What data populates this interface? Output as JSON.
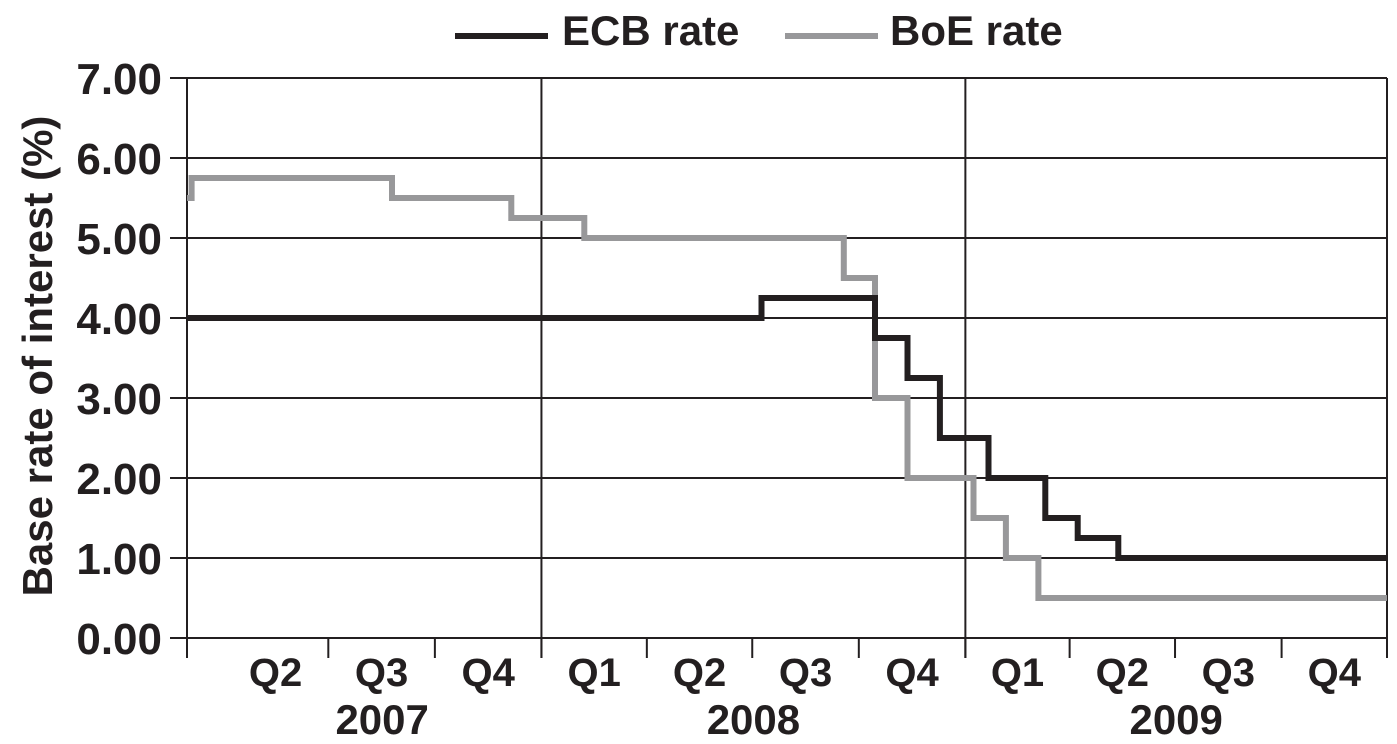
{
  "chart_data": {
    "type": "line",
    "line_shape": "step",
    "ylabel": "Base rate of interest (%)",
    "ylim": [
      0,
      7
    ],
    "yticks": [
      "0.00",
      "1.00",
      "2.00",
      "3.00",
      "4.00",
      "5.00",
      "6.00",
      "7.00"
    ],
    "grid": "horizontal lines at each y tick; vertical lines at year boundaries",
    "xlim": [
      "2007-03-01",
      "2009-12-31"
    ],
    "quarter_ticks": [
      {
        "label": "Q2",
        "start": "2007-04-01",
        "end": "2007-07-01"
      },
      {
        "label": "Q3",
        "start": "2007-07-01",
        "end": "2007-10-01"
      },
      {
        "label": "Q4",
        "start": "2007-10-01",
        "end": "2008-01-01"
      },
      {
        "label": "Q1",
        "start": "2008-01-01",
        "end": "2008-04-01"
      },
      {
        "label": "Q2",
        "start": "2008-04-01",
        "end": "2008-07-01"
      },
      {
        "label": "Q3",
        "start": "2008-07-01",
        "end": "2008-10-01"
      },
      {
        "label": "Q4",
        "start": "2008-10-01",
        "end": "2009-01-01"
      },
      {
        "label": "Q1",
        "start": "2009-01-01",
        "end": "2009-04-01"
      },
      {
        "label": "Q2",
        "start": "2009-04-01",
        "end": "2009-07-01"
      },
      {
        "label": "Q3",
        "start": "2009-07-01",
        "end": "2009-10-01"
      },
      {
        "label": "Q4",
        "start": "2009-10-01",
        "end": "2009-12-31"
      }
    ],
    "years": [
      {
        "label": "2007",
        "start": "2007-04-01",
        "end": "2008-01-01"
      },
      {
        "label": "2008",
        "start": "2008-01-01",
        "end": "2009-01-01"
      },
      {
        "label": "2009",
        "start": "2009-01-01",
        "end": "2009-12-31"
      }
    ],
    "year_boundaries": [
      "2008-01-01",
      "2009-01-01"
    ],
    "legend_position": "top-center",
    "series": [
      {
        "name": "ECB rate",
        "color": "#231f20",
        "points": [
          {
            "x": "2007-03-01",
            "y": 4.0
          },
          {
            "x": "2008-07-09",
            "y": 4.25
          },
          {
            "x": "2008-10-15",
            "y": 3.75
          },
          {
            "x": "2008-11-12",
            "y": 3.25
          },
          {
            "x": "2008-12-10",
            "y": 2.5
          },
          {
            "x": "2009-01-21",
            "y": 2.0
          },
          {
            "x": "2009-03-11",
            "y": 1.5
          },
          {
            "x": "2009-04-08",
            "y": 1.25
          },
          {
            "x": "2009-05-13",
            "y": 1.0
          },
          {
            "x": "2009-12-31",
            "y": 1.0
          }
        ]
      },
      {
        "name": "BoE rate",
        "color": "#98989a",
        "points": [
          {
            "x": "2007-03-01",
            "y": 5.5
          },
          {
            "x": "2007-03-05",
            "y": 5.75
          },
          {
            "x": "2007-07-05",
            "y": 5.75
          },
          {
            "x": "2007-08-25",
            "y": 5.5
          },
          {
            "x": "2007-12-06",
            "y": 5.25
          },
          {
            "x": "2008-02-07",
            "y": 5.0
          },
          {
            "x": "2008-09-18",
            "y": 4.5
          },
          {
            "x": "2008-10-15",
            "y": 3.0
          },
          {
            "x": "2008-11-12",
            "y": 2.0
          },
          {
            "x": "2009-01-08",
            "y": 1.5
          },
          {
            "x": "2009-02-05",
            "y": 1.0
          },
          {
            "x": "2009-03-05",
            "y": 0.5
          },
          {
            "x": "2009-12-31",
            "y": 0.5
          }
        ]
      }
    ]
  }
}
